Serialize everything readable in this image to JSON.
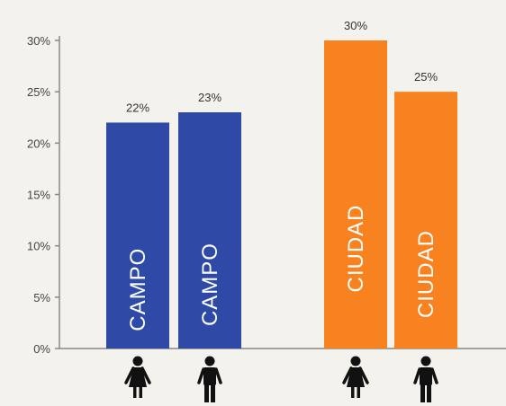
{
  "chart_data": {
    "type": "bar",
    "categories": [
      "CAMPO",
      "CAMPO",
      "CIUDAD",
      "CIUDAD"
    ],
    "values": [
      22,
      23,
      30,
      25
    ],
    "value_labels": [
      "22%",
      "23%",
      "30%",
      "25%"
    ],
    "bar_colors": [
      "#2e4aa6",
      "#2e4aa6",
      "#f7821f",
      "#f7821f"
    ],
    "icons": [
      "woman-icon",
      "man-icon",
      "woman-icon",
      "man-icon"
    ],
    "ylim": [
      0,
      30
    ],
    "yticks": [
      0,
      5,
      10,
      15,
      20,
      25,
      30
    ],
    "ytick_labels": [
      "0%",
      "5%",
      "10%",
      "15%",
      "20%",
      "25%",
      "30%"
    ],
    "title": "",
    "xlabel": "",
    "ylabel": "",
    "grid": false,
    "legend": "none"
  }
}
